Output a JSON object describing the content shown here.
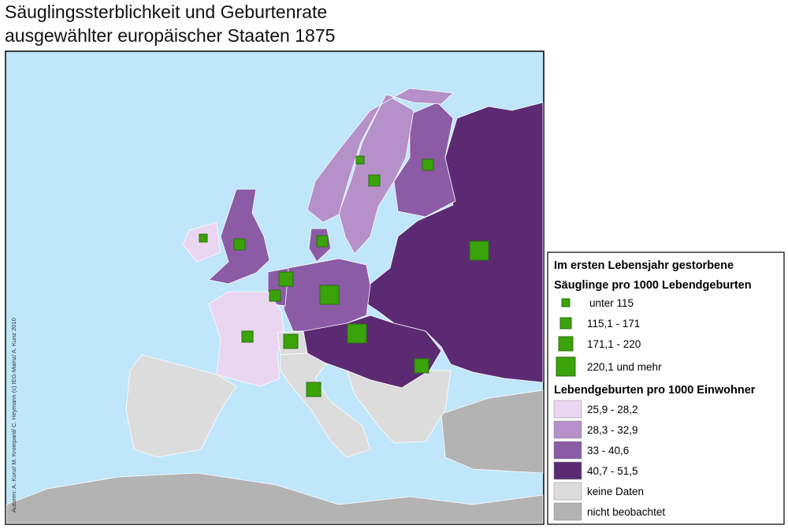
{
  "title": [
    "Säuglingssterblichkeit und Geburtenrate",
    "ausgewählter europäischer Staaten 1875"
  ],
  "credit": "Autoren: A. Kunz/ M. Krompard/ C. Heymann (c) IEG-Mainz/ A. Kunz 2010",
  "legend": {
    "mortality_title": [
      "Im ersten Lebensjahr gestorbene",
      "Säuglinge pro 1000  Lebendgeburten"
    ],
    "mortality_classes": [
      "unter  115",
      "115,1 - 171",
      "171,1 - 220",
      "220,1 und mehr"
    ],
    "birth_title": "Lebendgeburten pro 1000 Einwohner",
    "birth_classes": [
      "25,9 - 28,2",
      "28,3 - 32,9",
      "33 - 40,6",
      "40,7 - 51,5",
      "keine Daten",
      "nicht beobachtet"
    ]
  }
}
